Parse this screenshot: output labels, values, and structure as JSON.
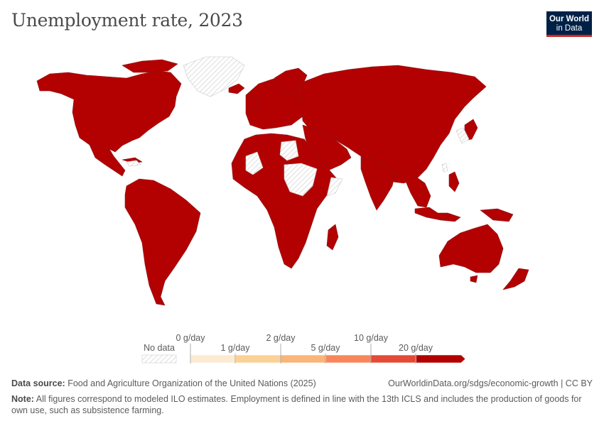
{
  "title": "Unemployment rate, 2023",
  "logo": {
    "line1": "Our World",
    "line2": "in Data"
  },
  "colors": {
    "data_fill": "#b30000",
    "no_data_hatch": "#d6d6d6",
    "land_border": "#8a1a1a"
  },
  "legend": {
    "no_data_label": "No data",
    "bins": [
      {
        "color": "#fdead2"
      },
      {
        "color": "#fcd195"
      },
      {
        "color": "#fbb47a"
      },
      {
        "color": "#f8865a"
      },
      {
        "color": "#e44a35"
      },
      {
        "color": "#b30000"
      }
    ],
    "upper_labels": [
      "0 g/day",
      "2 g/day",
      "10 g/day"
    ],
    "lower_labels": [
      "1 g/day",
      "5 g/day",
      "20 g/day"
    ]
  },
  "footer": {
    "source_label": "Data source:",
    "source_text": "Food and Agriculture Organization of the United Nations (2025)",
    "source_right": "OurWorldinData.org/sdgs/economic-growth | CC BY",
    "note_label": "Note:",
    "note_text": "All figures correspond to modeled ILO estimates. Employment is defined in line with the 13th ICLS and includes the production of goods for own use, such as subsistence farming."
  }
}
